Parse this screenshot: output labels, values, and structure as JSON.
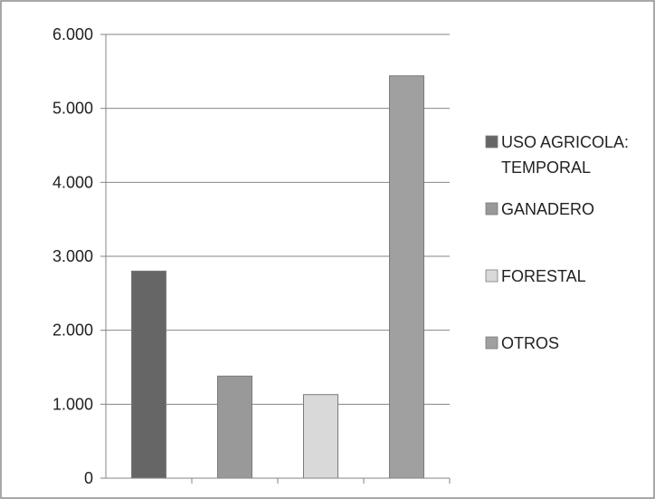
{
  "chart_data": {
    "type": "bar",
    "title": "",
    "xlabel": "",
    "ylabel": "",
    "ylim": [
      0,
      6000
    ],
    "yticks": [
      0,
      1000,
      2000,
      3000,
      4000,
      5000,
      6000
    ],
    "ytick_labels": [
      "0",
      "1.000",
      "2.000",
      "3.000",
      "4.000",
      "5.000",
      "6.000"
    ],
    "grid": true,
    "legend_position": "right",
    "series": [
      {
        "name": "USO AGRICOLA: TEMPORAL",
        "legend_lines": [
          "USO AGRICOLA:",
          "TEMPORAL"
        ],
        "value": 2800,
        "color": "#666666"
      },
      {
        "name": "GANADERO",
        "legend_lines": [
          "GANADERO"
        ],
        "value": 1380,
        "color": "#999999"
      },
      {
        "name": "FORESTAL",
        "legend_lines": [
          "FORESTAL"
        ],
        "value": 1130,
        "color": "#d9d9d9"
      },
      {
        "name": "OTROS",
        "legend_lines": [
          "OTROS"
        ],
        "value": 5440,
        "color": "#a0a0a0"
      }
    ]
  }
}
